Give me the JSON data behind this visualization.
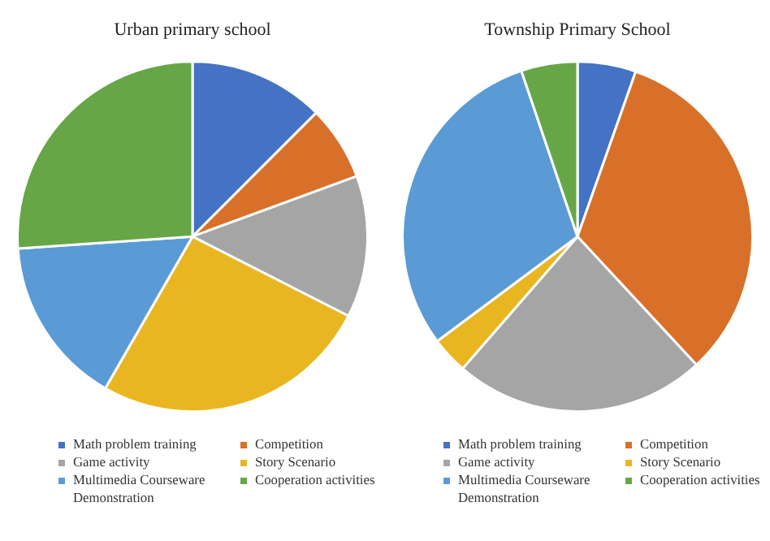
{
  "chart_data": [
    {
      "type": "pie",
      "title": "Urban primary school",
      "legend": "bottom",
      "categories": [
        "Math problem training",
        "Competition",
        "Game activity",
        "Story Scenario",
        "Multimedia Courseware Demonstration",
        "Cooperation activities"
      ],
      "values": [
        12.5,
        6.9,
        13.1,
        25.8,
        15.6,
        26.1
      ],
      "colors": [
        "#4472c4",
        "#d9702a",
        "#a5a5a5",
        "#e9b622",
        "#5b9bd5",
        "#67a646"
      ]
    },
    {
      "type": "pie",
      "title": "Township Primary School",
      "legend": "bottom",
      "categories": [
        "Math problem training",
        "Competition",
        "Game activity",
        "Story Scenario",
        "Multimedia Courseware Demonstration",
        "Cooperation activities"
      ],
      "values": [
        5.4,
        32.7,
        23.3,
        3.4,
        30.0,
        5.2
      ],
      "colors": [
        "#4472c4",
        "#d9702a",
        "#a5a5a5",
        "#e9b622",
        "#5b9bd5",
        "#67a646"
      ]
    }
  ]
}
